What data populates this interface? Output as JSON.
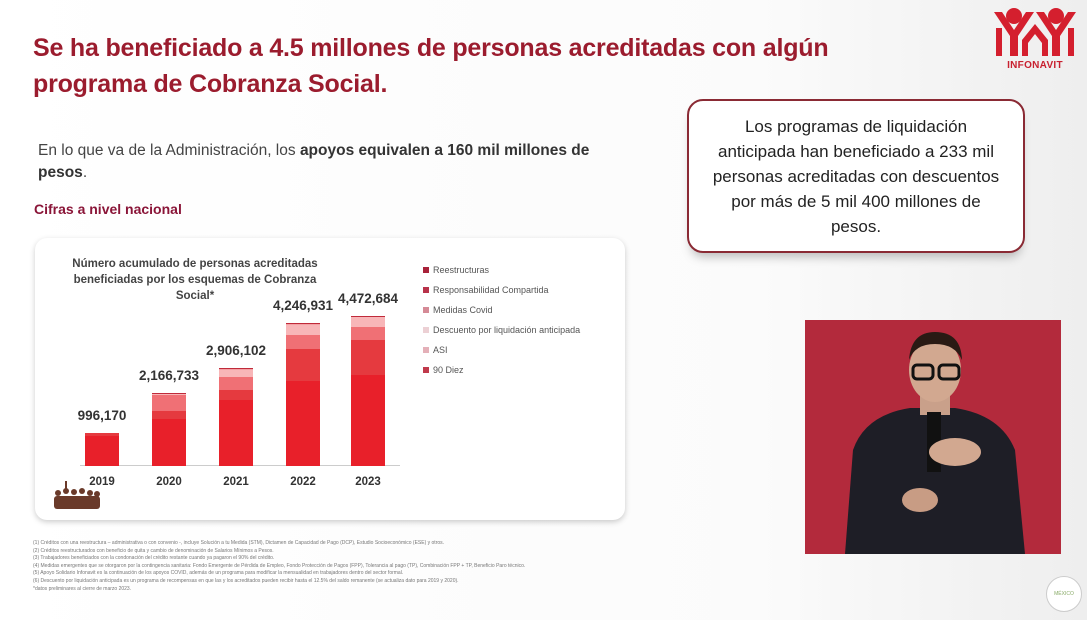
{
  "header": {
    "title": "Se ha beneficiado a 4.5 millones de personas acreditadas con algún programa de Cobranza Social.",
    "logo_text": "INFONAVIT"
  },
  "intro": {
    "text_plain": "En lo que va de la Administración, los ",
    "text_bold": "apoyos equivalen a 160 mil millones de pesos",
    "text_end": "."
  },
  "section_label": "Cifras a nivel nacional",
  "callout": {
    "text": "Los programas de liquidación anticipada han beneficiado a 233 mil personas acreditadas con descuentos por más de 5 mil 400 millones de pesos."
  },
  "chart_data": {
    "type": "bar",
    "stacked": true,
    "title": "Número acumulado de personas acreditadas beneficiadas por los esquemas de Cobranza Social*",
    "categories": [
      "2019",
      "2020",
      "2021",
      "2022",
      "2023"
    ],
    "totals": [
      996170,
      2166733,
      2906102,
      4246931,
      4472684
    ],
    "total_labels": [
      "996,170",
      "2,166,733",
      "2,906,102",
      "4,246,931",
      "4,472,684"
    ],
    "series": [
      {
        "name": "Reestructuras",
        "color": "#e8202a",
        "values": [
          880000,
          1400000,
          1970000,
          2530000,
          2720000
        ]
      },
      {
        "name": "Responsabilidad Compartida",
        "color": "#e53a3f",
        "values": [
          100000,
          240000,
          290000,
          960000,
          1030000
        ]
      },
      {
        "name": "Medidas Covid",
        "color": "#f07075",
        "values": [
          0,
          460000,
          400000,
          420000,
          390000
        ]
      },
      {
        "name": "Descuento por liquidación anticipada",
        "color": "#f8b6b8",
        "values": [
          0,
          40000,
          200000,
          290000,
          280000
        ]
      },
      {
        "name": "ASI",
        "color": "#f4a0a4",
        "values": [
          0,
          10000,
          20000,
          20000,
          20000
        ]
      },
      {
        "name": "90 Diez",
        "color": "#c02a3a",
        "values": [
          16170,
          16733,
          26102,
          26931,
          32684
        ]
      }
    ],
    "legend_position": "right",
    "grid": false,
    "xlabel": "",
    "ylabel": ""
  },
  "legend": [
    {
      "label": "Reestructuras",
      "color": "#a8223a"
    },
    {
      "label": "Responsabilidad Compartida",
      "color": "#b8324a"
    },
    {
      "label": "Medidas Covid",
      "color": "#d58a96"
    },
    {
      "label": "Descuento por liquidación anticipada",
      "color": "#ecd0d4"
    },
    {
      "label": "ASI",
      "color": "#e4b0b8"
    },
    {
      "label": "90 Diez",
      "color": "#c03a4c"
    }
  ],
  "footnotes": [
    "(1) Créditos con una reestructura – administrativa o con convenio -, incluye Solución a tu Medida (STM), Dictamen de Capacidad de Pago (DCP), Estudio Socioeconómico (ESE) y otros.",
    "(2) Créditos reestructurados con beneficio de quita y cambio de denominación de Salarios Mínimos a Pesos.",
    "(3) Trabajadores beneficiados con la condonación del crédito restante cuando ya pagaron el 90% del crédito.",
    "(4) Medidas emergentes que se otorgaron por la contingencia sanitaria: Fondo Emergente de Pérdida de Empleo, Fondo Protección de Pagos (FPP), Tolerancia al pago (TP), Combinación FPP + TP, Beneficio Paro técnico.",
    "(5) Apoyo Solidario Infonavit es la continuación de los apoyos COVID, además de un programa para modificar la mensualidad en trabajadores dentro del sector formal.",
    "(6) Descuento por liquidación anticipada es un programa de recompensas en que las y los acreditados pueden recibir hasta el 12.5% del saldo remanente (se actualiza dato para 2019 y 2020).",
    "*datos preliminares al cierre de marzo 2023."
  ],
  "seal_text": "MÉXICO"
}
